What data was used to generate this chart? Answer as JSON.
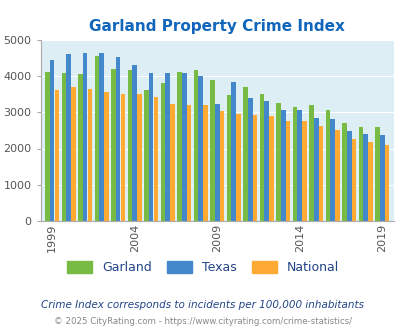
{
  "title": "Garland Property Crime Index",
  "years": [
    1999,
    2000,
    2001,
    2002,
    2003,
    2004,
    2005,
    2006,
    2007,
    2008,
    2009,
    2010,
    2011,
    2012,
    2013,
    2014,
    2015,
    2016,
    2017,
    2018,
    2019
  ],
  "garland": [
    4100,
    4080,
    4050,
    4550,
    4200,
    4170,
    3600,
    3800,
    4110,
    4170,
    3900,
    3470,
    3700,
    3500,
    3260,
    3150,
    3200,
    3050,
    2700,
    2600,
    2580
  ],
  "texas": [
    4430,
    4600,
    4630,
    4620,
    4520,
    4310,
    4070,
    4090,
    4080,
    4000,
    3220,
    3820,
    3380,
    3320,
    3060,
    3050,
    2840,
    2820,
    2480,
    2400,
    2380
  ],
  "national": [
    3600,
    3690,
    3650,
    3570,
    3510,
    3490,
    3430,
    3220,
    3210,
    3200,
    3040,
    2960,
    2920,
    2890,
    2750,
    2750,
    2620,
    2500,
    2250,
    2190,
    2110
  ],
  "garland_color": "#77bb44",
  "texas_color": "#4488cc",
  "national_color": "#ffaa33",
  "bg_color": "#ddeef5",
  "ylim": [
    0,
    5000
  ],
  "yticks": [
    0,
    1000,
    2000,
    3000,
    4000,
    5000
  ],
  "xlabel_ticks": [
    1999,
    2004,
    2009,
    2014,
    2019
  ],
  "subtitle": "Crime Index corresponds to incidents per 100,000 inhabitants",
  "footer": "© 2025 CityRating.com - https://www.cityrating.com/crime-statistics/",
  "title_color": "#1166bb",
  "subtitle_color": "#224488",
  "footer_color": "#888888"
}
